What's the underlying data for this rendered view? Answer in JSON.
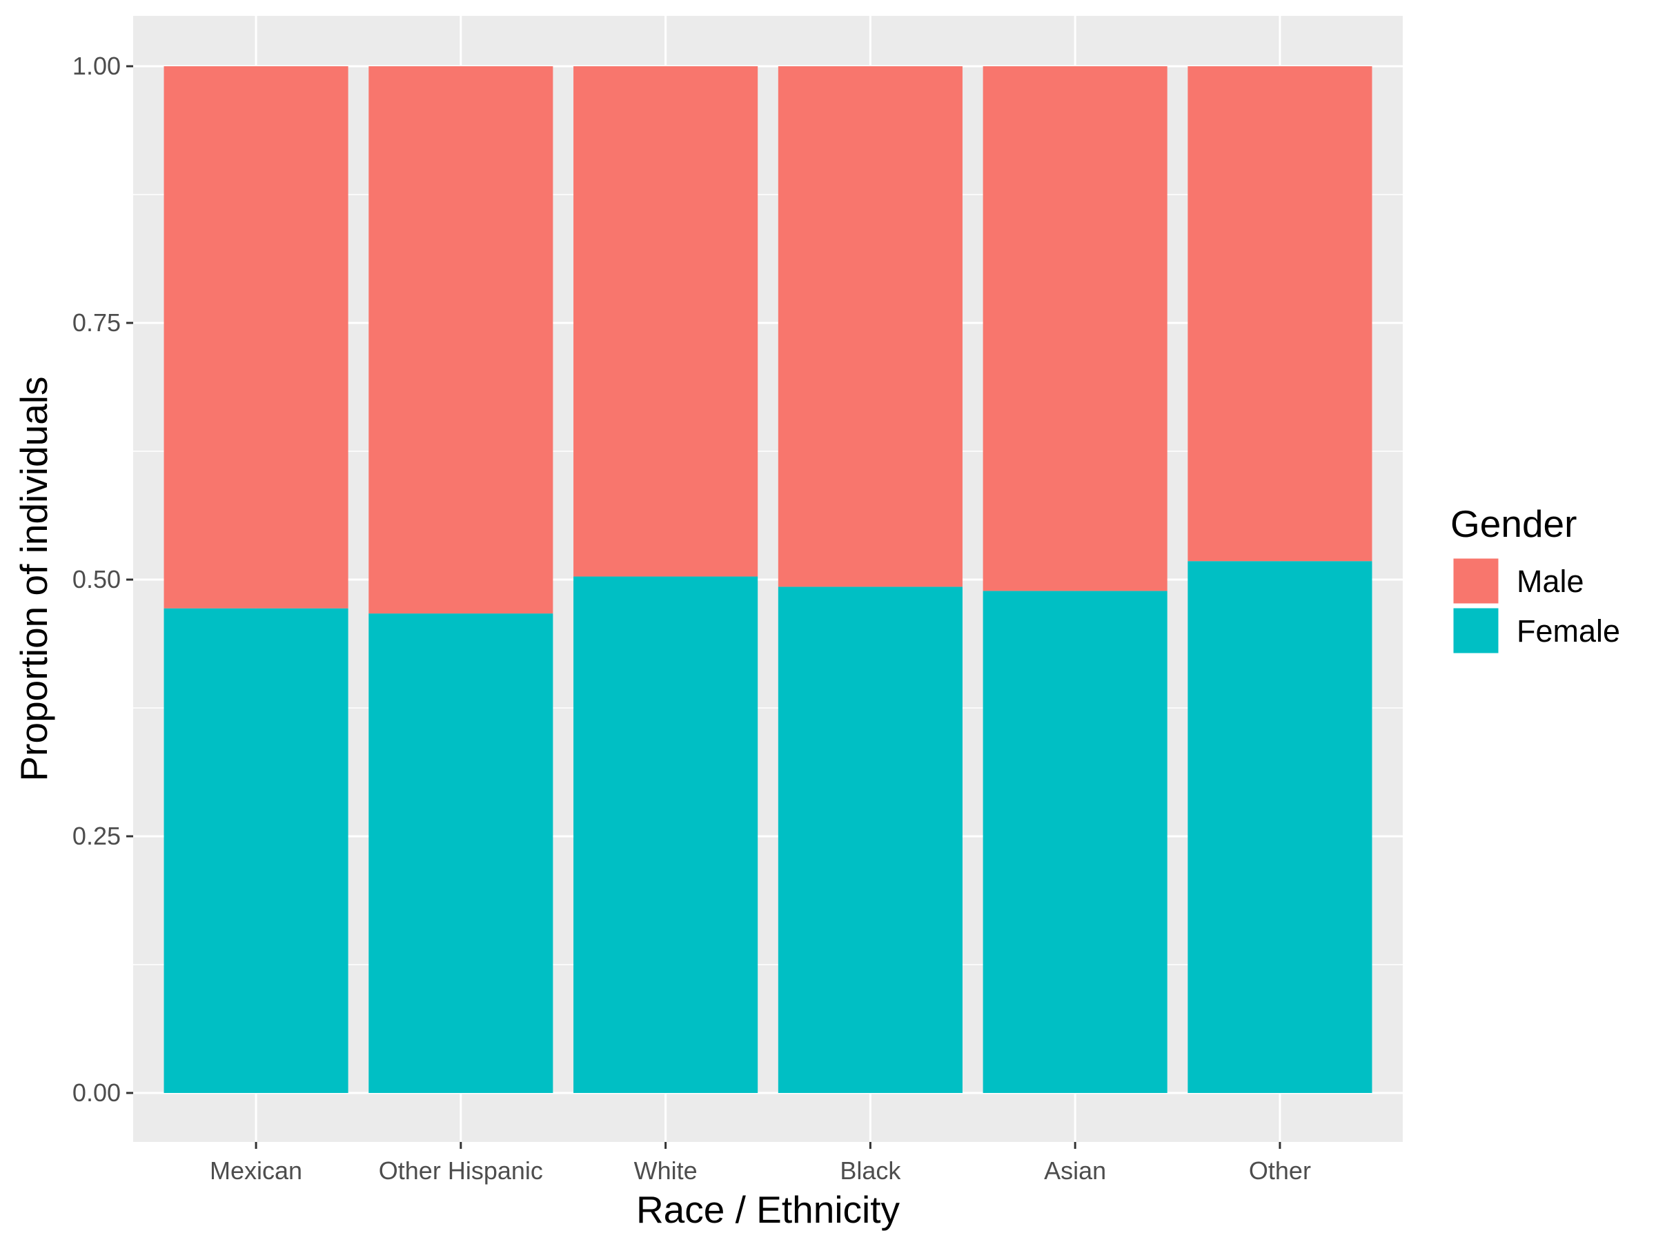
{
  "chart_data": {
    "type": "bar",
    "stacked": true,
    "categories": [
      "Mexican",
      "Other Hispanic",
      "White",
      "Black",
      "Asian",
      "Other"
    ],
    "series": [
      {
        "name": "Male",
        "values": [
          0.528,
          0.533,
          0.497,
          0.507,
          0.511,
          0.482
        ],
        "color": "#F8766D"
      },
      {
        "name": "Female",
        "values": [
          0.472,
          0.467,
          0.503,
          0.493,
          0.489,
          0.518
        ],
        "color": "#00BFC4"
      }
    ],
    "xlabel": "Race / Ethnicity",
    "ylabel": "Proportion of individuals",
    "ylim": [
      0,
      1
    ],
    "yticks": [
      "0.00",
      "0.25",
      "0.50",
      "0.75",
      "1.00"
    ],
    "legend": {
      "title": "Gender",
      "placement": "right"
    },
    "grid": true,
    "colors": {
      "panel": "#EBEBEB",
      "grid": "#FFFFFF"
    }
  }
}
